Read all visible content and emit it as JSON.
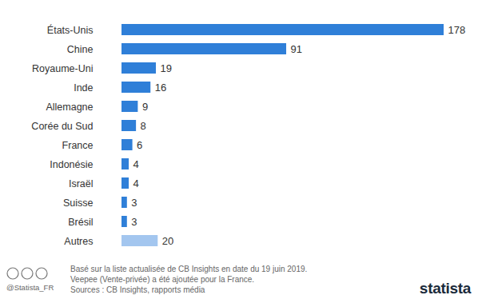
{
  "chart_data": {
    "type": "bar",
    "orientation": "horizontal",
    "categories": [
      "États-Unis",
      "Chine",
      "Royaume-Uni",
      "Inde",
      "Allemagne",
      "Corée du Sud",
      "France",
      "Indonésie",
      "Israël",
      "Suisse",
      "Brésil",
      "Autres"
    ],
    "values": [
      178,
      91,
      19,
      16,
      9,
      8,
      6,
      4,
      4,
      3,
      3,
      20
    ],
    "colors": [
      "#2f7fd8",
      "#2f7fd8",
      "#2f7fd8",
      "#2f7fd8",
      "#2f7fd8",
      "#2f7fd8",
      "#2f7fd8",
      "#2f7fd8",
      "#2f7fd8",
      "#2f7fd8",
      "#2f7fd8",
      "#a3c6ef"
    ],
    "data_labels": true,
    "tick_labels": "y",
    "grid": false,
    "notes": [
      "Basé sur la liste actualisée de CB Insights en date du 19 juin 2019.",
      "Veepee (Vente-privée) a été ajoutée pour la France.",
      "Sources : CB Insights, rapports média"
    ],
    "credit": "@Statista_FR",
    "brand": "statista"
  }
}
